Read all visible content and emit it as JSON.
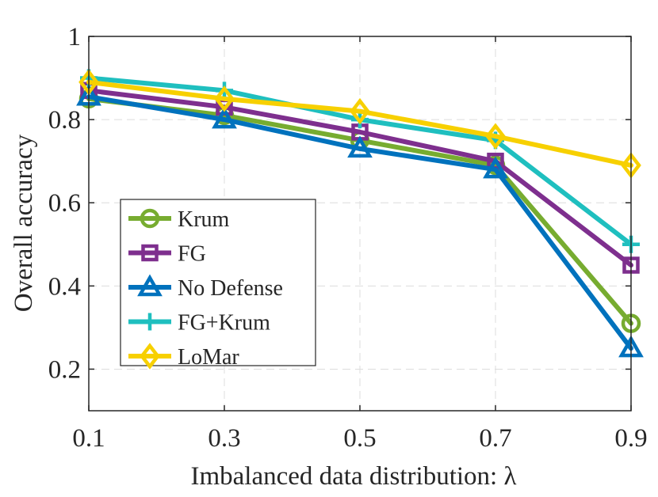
{
  "chart_data": {
    "type": "line",
    "title": "",
    "xlabel": "Imbalanced data distribution: λ",
    "ylabel": "Overall accuracy",
    "x": [
      0.1,
      0.3,
      0.5,
      0.7,
      0.9
    ],
    "x_tick_labels": [
      "0.1",
      "0.3",
      "0.5",
      "0.7",
      "0.9"
    ],
    "y_ticks": [
      0.2,
      0.4,
      0.6,
      0.8,
      1
    ],
    "y_tick_labels": [
      "0.2",
      "0.4",
      "0.6",
      "0.8",
      "1"
    ],
    "xlim": [
      0.1,
      0.9
    ],
    "ylim": [
      0.1,
      1.0
    ],
    "grid": true,
    "legend_position": "lower-left",
    "series": [
      {
        "name": "Krum",
        "marker": "circle",
        "color": "#77AC30",
        "values": [
          0.85,
          0.81,
          0.75,
          0.69,
          0.31
        ]
      },
      {
        "name": "FG",
        "marker": "square",
        "color": "#7E2F8E",
        "values": [
          0.87,
          0.83,
          0.77,
          0.7,
          0.45
        ]
      },
      {
        "name": "No Defense",
        "marker": "triangle",
        "color": "#0072BD",
        "values": [
          0.855,
          0.8,
          0.73,
          0.68,
          0.25
        ]
      },
      {
        "name": "FG+Krum",
        "marker": "plus",
        "color": "#1FBFBF",
        "values": [
          0.9,
          0.87,
          0.8,
          0.75,
          0.5
        ]
      },
      {
        "name": "LoMar",
        "marker": "diamond",
        "color": "#F7D000",
        "values": [
          0.89,
          0.85,
          0.82,
          0.76,
          0.69
        ]
      }
    ]
  }
}
